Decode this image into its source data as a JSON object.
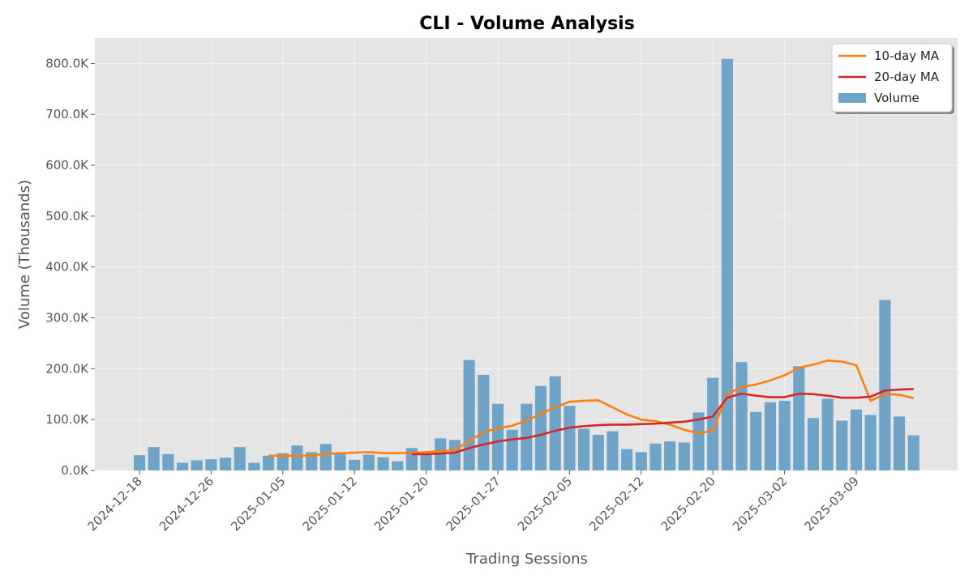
{
  "chart_data": {
    "type": "bar",
    "title": "CLI - Volume Analysis",
    "xlabel": "Trading Sessions",
    "ylabel": "Volume (Thousands)",
    "ylim": [
      0,
      850000
    ],
    "yticks": [
      0,
      100000,
      200000,
      300000,
      400000,
      500000,
      600000,
      700000,
      800000
    ],
    "ytick_labels": [
      "0.0K",
      "100.0K",
      "200.0K",
      "300.0K",
      "400.0K",
      "500.0K",
      "600.0K",
      "700.0K",
      "800.0K"
    ],
    "xticks": [
      {
        "index": 0,
        "label": "2024-12-18"
      },
      {
        "index": 5,
        "label": "2024-12-26"
      },
      {
        "index": 10,
        "label": "2025-01-05"
      },
      {
        "index": 15,
        "label": "2025-01-12"
      },
      {
        "index": 20,
        "label": "2025-01-20"
      },
      {
        "index": 25,
        "label": "2025-01-27"
      },
      {
        "index": 30,
        "label": "2025-02-05"
      },
      {
        "index": 35,
        "label": "2025-02-12"
      },
      {
        "index": 40,
        "label": "2025-02-20"
      },
      {
        "index": 45,
        "label": "2025-03-02"
      },
      {
        "index": 50,
        "label": "2025-03-09"
      }
    ],
    "grid": true,
    "legend_position": "top-right",
    "series": [
      {
        "name": "Volume",
        "kind": "bar",
        "color": "#6fa3c8",
        "values": [
          30000,
          46000,
          32000,
          15000,
          20000,
          22000,
          25000,
          46000,
          15000,
          29000,
          34000,
          49000,
          36000,
          52000,
          34000,
          21000,
          31000,
          26000,
          18000,
          44000,
          31000,
          63000,
          60000,
          217000,
          188000,
          131000,
          80000,
          131000,
          166000,
          185000,
          127000,
          82000,
          70000,
          77000,
          42000,
          36000,
          53000,
          57000,
          55000,
          114000,
          182000,
          809000,
          213000,
          115000,
          134000,
          137000,
          205000,
          103000,
          141000,
          98000,
          120000,
          109000,
          335000,
          106000,
          69000
        ]
      },
      {
        "name": "10-day MA",
        "kind": "line",
        "color": "#ff7f0e",
        "values": [
          null,
          null,
          null,
          null,
          null,
          null,
          null,
          null,
          null,
          29000,
          29000,
          29000,
          29000,
          33000,
          34000,
          35000,
          36000,
          34000,
          34000,
          35000,
          36000,
          38000,
          40000,
          58000,
          75000,
          83000,
          88000,
          98000,
          111000,
          124000,
          135000,
          137000,
          138000,
          124000,
          110000,
          100000,
          97000,
          90000,
          80000,
          73000,
          78000,
          150000,
          164000,
          169000,
          177000,
          187000,
          202000,
          208000,
          216000,
          214000,
          207000,
          137000,
          150000,
          149000,
          142000
        ]
      },
      {
        "name": "20-day MA",
        "kind": "line",
        "color": "#d62728",
        "values": [
          null,
          null,
          null,
          null,
          null,
          null,
          null,
          null,
          null,
          null,
          null,
          null,
          null,
          null,
          null,
          null,
          null,
          null,
          null,
          32000,
          32000,
          33000,
          35000,
          44000,
          51000,
          57000,
          61000,
          64000,
          70000,
          78000,
          84000,
          87000,
          89000,
          90000,
          90000,
          91000,
          92000,
          94000,
          96000,
          100000,
          106000,
          143000,
          151000,
          147000,
          144000,
          144000,
          151000,
          150000,
          147000,
          143000,
          143000,
          145000,
          157000,
          159000,
          160000
        ]
      }
    ]
  }
}
